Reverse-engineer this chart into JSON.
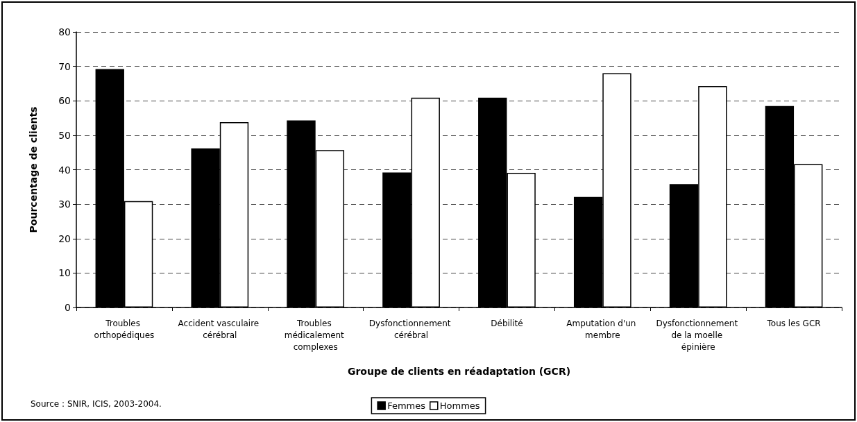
{
  "chart_data": {
    "type": "bar",
    "xlabel": "Groupe de clients en réadaptation (GCR)",
    "ylabel": "Pourcentage de clients",
    "categories": [
      "Troubles orthopédiques",
      "Accident vasculaire cérébral",
      "Troubles médicalement complexes",
      "Dysfonctionnement cérébral",
      "Débilité",
      "Amputation d'un membre",
      "Dysfonctionnement de la moelle épinière",
      "Tous les GCR"
    ],
    "series": [
      {
        "name": "Femmes",
        "color": "#000000",
        "values": [
          69.2,
          46.2,
          54.3,
          39.2,
          60.9,
          32.1,
          35.8,
          58.5
        ]
      },
      {
        "name": "Hommes",
        "color": "#ffffff",
        "values": [
          30.9,
          53.8,
          45.7,
          60.9,
          39.1,
          68.0,
          64.3,
          41.6
        ]
      }
    ],
    "ylim": [
      0,
      80
    ],
    "yticks": [
      0,
      10,
      20,
      30,
      40,
      50,
      60,
      70,
      80
    ],
    "grid": "y",
    "legend": "bottom",
    "annotations": [
      "Source : SNIR, ICIS, 2003-2004."
    ]
  }
}
